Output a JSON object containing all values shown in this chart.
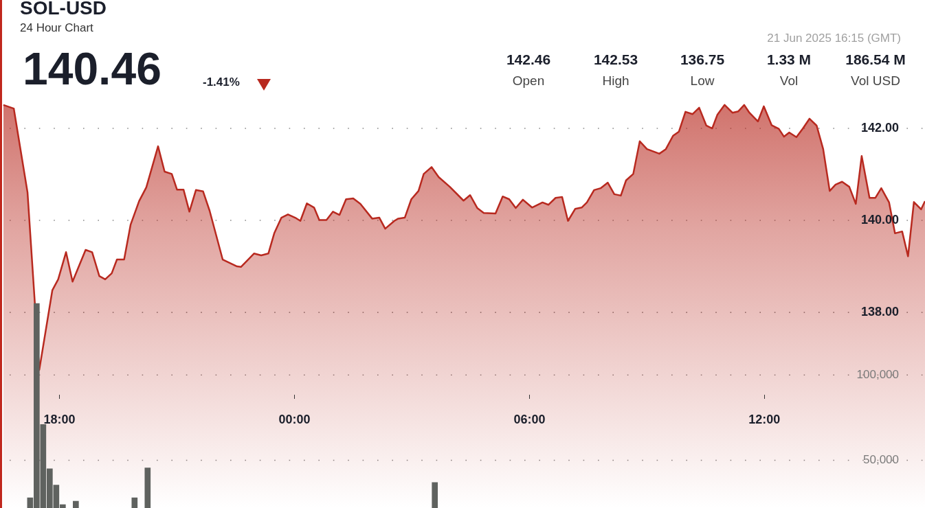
{
  "chart_data": {
    "type": "area",
    "title": "SOL-USD",
    "subtitle": "24 Hour Chart",
    "annotations": [
      "140.46",
      "-1.41%",
      "142.46",
      "Open",
      "142.53",
      "High",
      "136.75",
      "Low",
      "1.33 M",
      "Vol",
      "186.54 M",
      "Vol USD",
      "21 Jun 2025 16:15 (GMT)"
    ],
    "xlim": [
      "2025-06-20T16:32",
      "2025-06-21T16:06"
    ],
    "xticks": [
      {
        "value": "2025-06-20T18:00",
        "label": "18:00"
      },
      {
        "value": "2025-06-21T00:00",
        "label": "00:00"
      },
      {
        "value": "2025-06-21T06:00",
        "label": "06:00"
      },
      {
        "value": "2025-06-21T12:00",
        "label": "12:00"
      }
    ],
    "ylim": [
      133.75,
      144.79
    ],
    "yticks": [
      {
        "value": 138,
        "label": "138.00"
      },
      {
        "value": 140,
        "label": "140.00"
      },
      {
        "value": 142,
        "label": "142.00"
      }
    ],
    "y2lim": [
      22000,
      320000
    ],
    "y2ticks": [
      {
        "value": 50000,
        "label": "50,000"
      },
      {
        "value": 100000,
        "label": "100,000"
      }
    ],
    "grid": "y",
    "legend": false,
    "marker": "none",
    "line_style": "solid",
    "series": [
      {
        "color": "#b8291f",
        "x": [
          "2025-06-20T16:34",
          "2025-06-20T16:50",
          "2025-06-20T17:11",
          "2025-06-20T17:29",
          "2025-06-20T17:49",
          "2025-06-20T17:58",
          "2025-06-20T18:10",
          "2025-06-20T18:20",
          "2025-06-20T18:40",
          "2025-06-20T18:50",
          "2025-06-20T19:01",
          "2025-06-20T19:10",
          "2025-06-20T19:20",
          "2025-06-20T19:28",
          "2025-06-20T19:39",
          "2025-06-20T19:49",
          "2025-06-20T20:02",
          "2025-06-20T20:13",
          "2025-06-20T20:31",
          "2025-06-20T20:41",
          "2025-06-20T20:52",
          "2025-06-20T21:00",
          "2025-06-20T21:10",
          "2025-06-20T21:19",
          "2025-06-20T21:29",
          "2025-06-20T21:40",
          "2025-06-20T21:50",
          "2025-06-20T22:10",
          "2025-06-20T22:32",
          "2025-06-20T22:38",
          "2025-06-20T22:58",
          "2025-06-20T23:09",
          "2025-06-20T23:20",
          "2025-06-20T23:29",
          "2025-06-20T23:40",
          "2025-06-20T23:50",
          "2025-06-21T00:01",
          "2025-06-21T00:09",
          "2025-06-21T00:19",
          "2025-06-21T00:30",
          "2025-06-21T00:38",
          "2025-06-21T00:49",
          "2025-06-21T00:59",
          "2025-06-21T01:09",
          "2025-06-21T01:19",
          "2025-06-21T01:30",
          "2025-06-21T01:41",
          "2025-06-21T01:59",
          "2025-06-21T02:10",
          "2025-06-21T02:19",
          "2025-06-21T02:33",
          "2025-06-21T02:39",
          "2025-06-21T02:49",
          "2025-06-21T02:59",
          "2025-06-21T03:10",
          "2025-06-21T03:18",
          "2025-06-21T03:30",
          "2025-06-21T03:41",
          "2025-06-21T03:58",
          "2025-06-21T04:19",
          "2025-06-21T04:29",
          "2025-06-21T04:40",
          "2025-06-21T04:50",
          "2025-06-21T05:08",
          "2025-06-21T05:19",
          "2025-06-21T05:29",
          "2025-06-21T05:39",
          "2025-06-21T05:50",
          "2025-06-21T06:04",
          "2025-06-21T06:20",
          "2025-06-21T06:29",
          "2025-06-21T06:40",
          "2025-06-21T06:50",
          "2025-06-21T06:59",
          "2025-06-21T07:10",
          "2025-06-21T07:20",
          "2025-06-21T07:28",
          "2025-06-21T07:39",
          "2025-06-21T07:49",
          "2025-06-21T08:00",
          "2025-06-21T08:10",
          "2025-06-21T08:20",
          "2025-06-21T08:28",
          "2025-06-21T08:39",
          "2025-06-21T08:49",
          "2025-06-21T09:00",
          "2025-06-21T09:19",
          "2025-06-21T09:29",
          "2025-06-21T09:40",
          "2025-06-21T09:49",
          "2025-06-21T09:59",
          "2025-06-21T10:10",
          "2025-06-21T10:20",
          "2025-06-21T10:31",
          "2025-06-21T10:40",
          "2025-06-21T10:48",
          "2025-06-21T10:59",
          "2025-06-21T11:11",
          "2025-06-21T11:20",
          "2025-06-21T11:29",
          "2025-06-21T11:37",
          "2025-06-21T11:50",
          "2025-06-21T11:59",
          "2025-06-21T12:11",
          "2025-06-21T12:22",
          "2025-06-21T12:30",
          "2025-06-21T12:38",
          "2025-06-21T12:49",
          "2025-06-21T12:59",
          "2025-06-21T13:09",
          "2025-06-21T13:20",
          "2025-06-21T13:30",
          "2025-06-21T13:40",
          "2025-06-21T13:49",
          "2025-06-21T13:59",
          "2025-06-21T14:10",
          "2025-06-21T14:20",
          "2025-06-21T14:29",
          "2025-06-21T14:41",
          "2025-06-21T14:50",
          "2025-06-21T14:59",
          "2025-06-21T15:11",
          "2025-06-21T15:20",
          "2025-06-21T15:31",
          "2025-06-21T15:40",
          "2025-06-21T15:49",
          "2025-06-21T16:00",
          "2025-06-21T16:06"
        ],
        "values": [
          142.51,
          142.43,
          140.61,
          136.75,
          138.48,
          138.72,
          139.31,
          138.67,
          139.36,
          139.31,
          138.79,
          138.72,
          138.85,
          139.15,
          139.15,
          139.91,
          140.42,
          140.72,
          141.61,
          141.06,
          141.01,
          140.67,
          140.67,
          140.19,
          140.66,
          140.63,
          140.21,
          139.15,
          139.0,
          138.99,
          139.28,
          139.24,
          139.28,
          139.72,
          140.06,
          140.13,
          140.06,
          139.99,
          140.37,
          140.28,
          140.01,
          140.01,
          140.19,
          140.12,
          140.46,
          140.48,
          140.36,
          140.04,
          140.06,
          139.82,
          139.99,
          140.04,
          140.06,
          140.46,
          140.64,
          141.01,
          141.16,
          140.94,
          140.73,
          140.43,
          140.55,
          140.27,
          140.16,
          140.15,
          140.52,
          140.46,
          140.27,
          140.45,
          140.28,
          140.39,
          140.34,
          140.49,
          140.51,
          139.99,
          140.25,
          140.28,
          140.39,
          140.66,
          140.7,
          140.82,
          140.57,
          140.54,
          140.87,
          141.01,
          141.72,
          141.55,
          141.45,
          141.55,
          141.84,
          141.93,
          142.36,
          142.31,
          142.45,
          142.06,
          142.0,
          142.3,
          142.51,
          142.34,
          142.37,
          142.51,
          142.34,
          142.15,
          142.48,
          142.07,
          141.99,
          141.82,
          141.91,
          141.81,
          142.0,
          142.21,
          142.06,
          141.55,
          140.64,
          140.78,
          140.84,
          140.73,
          140.36,
          141.4,
          140.49,
          140.49,
          140.7,
          140.39,
          139.72,
          139.76,
          139.22,
          140.4,
          140.24,
          140.42
        ]
      },
      {
        "type": "bar",
        "axis": "y2",
        "color": "#5f625f",
        "x": [
          "2025-06-20T17:15",
          "2025-06-20T17:25",
          "2025-06-20T17:35",
          "2025-06-20T17:45",
          "2025-06-20T17:55",
          "2025-06-20T18:05",
          "2025-06-20T18:25",
          "2025-06-20T19:55",
          "2025-06-20T20:15",
          "2025-06-21T03:35"
        ],
        "values": [
          28000,
          142000,
          71000,
          45000,
          35500,
          24000,
          26000,
          28000,
          45500,
          37000
        ]
      }
    ]
  }
}
